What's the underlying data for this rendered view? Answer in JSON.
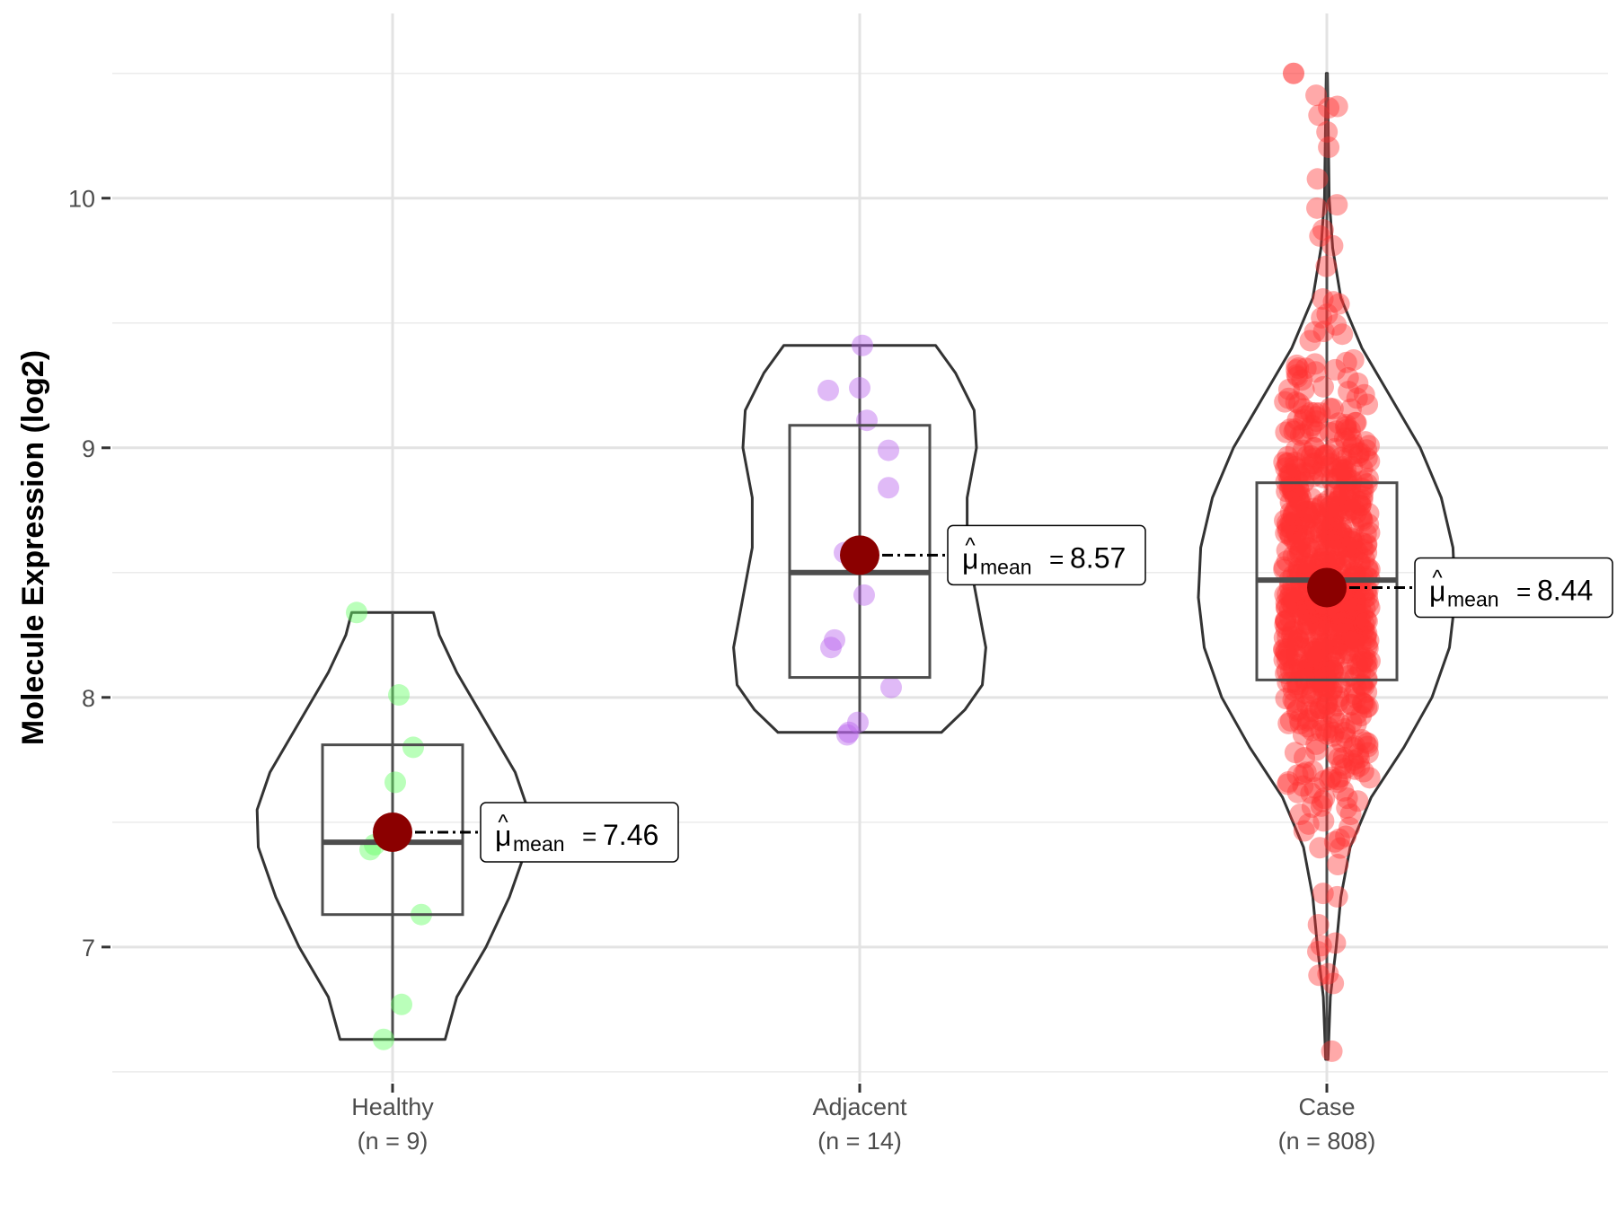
{
  "chart_data": {
    "type": "violin",
    "title": "",
    "xlabel": "",
    "ylabel": "Molecule Expression (log2)",
    "ylim": [
      6.46,
      10.74
    ],
    "yticks": [
      7,
      8,
      9,
      10
    ],
    "grid": true,
    "groups": [
      {
        "name": "Healthy",
        "n_label": "(n = 9)",
        "color": "#66ff66",
        "mean": 7.46,
        "mean_label": "7.46",
        "box": {
          "q1": 7.13,
          "median": 7.42,
          "q3": 7.81,
          "whisker_low": 6.63,
          "whisker_high": 8.34
        },
        "violin": [
          [
            6.63,
            0.45
          ],
          [
            6.8,
            0.55
          ],
          [
            7.0,
            0.8
          ],
          [
            7.2,
            1.0
          ],
          [
            7.4,
            1.15
          ],
          [
            7.55,
            1.16
          ],
          [
            7.7,
            1.05
          ],
          [
            7.9,
            0.8
          ],
          [
            8.1,
            0.55
          ],
          [
            8.25,
            0.4
          ],
          [
            8.34,
            0.35
          ]
        ],
        "points": [
          [
            -0.4,
            8.34
          ],
          [
            0.07,
            8.01
          ],
          [
            0.23,
            7.8
          ],
          [
            0.03,
            7.66
          ],
          [
            -0.2,
            7.41
          ],
          [
            -0.25,
            7.39
          ],
          [
            0.32,
            7.13
          ],
          [
            0.1,
            6.77
          ],
          [
            -0.1,
            6.63
          ]
        ]
      },
      {
        "name": "Adjacent",
        "n_label": "(n = 14)",
        "color": "#bb66ee",
        "mean": 8.57,
        "mean_label": "8.57",
        "box": {
          "q1": 8.08,
          "median": 8.5,
          "q3": 9.09,
          "whisker_low": 7.86,
          "whisker_high": 9.41
        },
        "violin": [
          [
            7.86,
            0.7
          ],
          [
            7.95,
            0.9
          ],
          [
            8.05,
            1.05
          ],
          [
            8.2,
            1.08
          ],
          [
            8.4,
            1.0
          ],
          [
            8.6,
            0.92
          ],
          [
            8.8,
            0.92
          ],
          [
            9.0,
            1.0
          ],
          [
            9.15,
            0.98
          ],
          [
            9.3,
            0.82
          ],
          [
            9.41,
            0.65
          ]
        ],
        "points": [
          [
            0.03,
            9.41
          ],
          [
            -0.35,
            9.23
          ],
          [
            0.0,
            9.24
          ],
          [
            0.08,
            9.11
          ],
          [
            0.32,
            8.99
          ],
          [
            0.32,
            8.84
          ],
          [
            -0.17,
            8.58
          ],
          [
            0.05,
            8.41
          ],
          [
            -0.28,
            8.23
          ],
          [
            -0.32,
            8.2
          ],
          [
            0.35,
            8.04
          ],
          [
            -0.02,
            7.9
          ],
          [
            -0.12,
            7.86
          ],
          [
            -0.14,
            7.85
          ]
        ]
      },
      {
        "name": "Case",
        "n_label": "(n = 808)",
        "color": "#ff3333",
        "mean": 8.44,
        "mean_label": "8.44",
        "box": {
          "q1": 8.07,
          "median": 8.47,
          "q3": 8.86,
          "whisker_low": 6.55,
          "whisker_high": 10.5
        },
        "violin": [
          [
            6.55,
            0.01
          ],
          [
            6.8,
            0.03
          ],
          [
            7.0,
            0.08
          ],
          [
            7.2,
            0.12
          ],
          [
            7.4,
            0.2
          ],
          [
            7.6,
            0.38
          ],
          [
            7.8,
            0.66
          ],
          [
            8.0,
            0.9
          ],
          [
            8.2,
            1.05
          ],
          [
            8.4,
            1.1
          ],
          [
            8.6,
            1.08
          ],
          [
            8.8,
            0.98
          ],
          [
            9.0,
            0.8
          ],
          [
            9.2,
            0.55
          ],
          [
            9.4,
            0.3
          ],
          [
            9.6,
            0.12
          ],
          [
            9.8,
            0.05
          ],
          [
            10.0,
            0.02
          ],
          [
            10.5,
            0.005
          ]
        ],
        "points_summary": "808 jittered points, densest between 7.5 and 9.5, outliers from 6.55 to 10.5"
      }
    ]
  }
}
